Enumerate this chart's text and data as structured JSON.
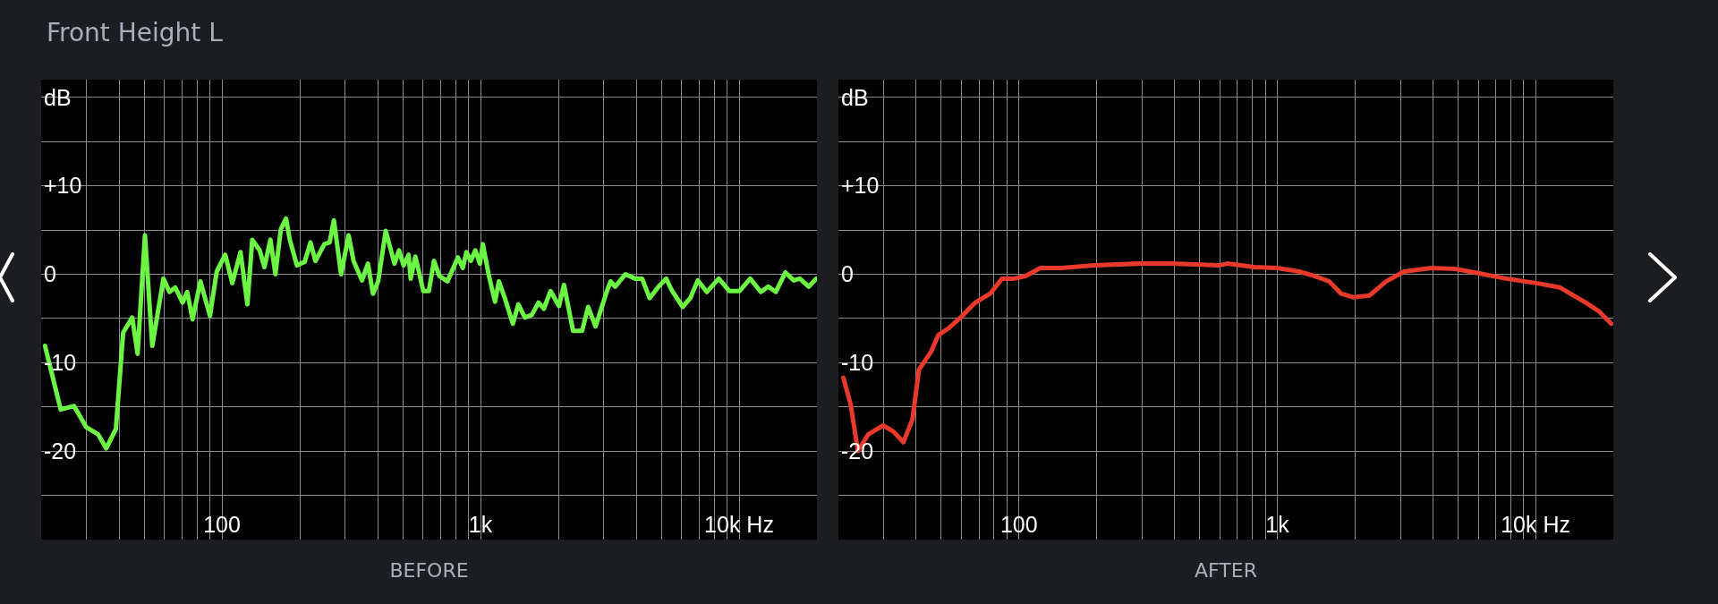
{
  "chart_data": [
    {
      "type": "line",
      "title": "Front Height L",
      "xlabel": "BEFORE",
      "log": "x",
      "grid": true,
      "xlim": [
        20,
        20000
      ],
      "ylim": [
        -30,
        22
      ],
      "xticks": [
        {
          "value": 30,
          "label": null
        },
        {
          "value": 40,
          "label": null
        },
        {
          "value": 50,
          "label": null
        },
        {
          "value": 60,
          "label": null
        },
        {
          "value": 70,
          "label": null
        },
        {
          "value": 80,
          "label": null
        },
        {
          "value": 90,
          "label": null
        },
        {
          "value": 100,
          "label": "100"
        },
        {
          "value": 200,
          "label": null
        },
        {
          "value": 300,
          "label": null
        },
        {
          "value": 400,
          "label": null
        },
        {
          "value": 500,
          "label": null
        },
        {
          "value": 600,
          "label": null
        },
        {
          "value": 700,
          "label": null
        },
        {
          "value": 800,
          "label": null
        },
        {
          "value": 900,
          "label": null
        },
        {
          "value": 1000,
          "label": "1k"
        },
        {
          "value": 2000,
          "label": null
        },
        {
          "value": 3000,
          "label": null
        },
        {
          "value": 4000,
          "label": null
        },
        {
          "value": 5000,
          "label": null
        },
        {
          "value": 6000,
          "label": null
        },
        {
          "value": 7000,
          "label": null
        },
        {
          "value": 8000,
          "label": null
        },
        {
          "value": 9000,
          "label": null
        },
        {
          "value": 10000,
          "label": "10k Hz"
        }
      ],
      "yticks": [
        {
          "value": 20,
          "label": "dB"
        },
        {
          "value": 15,
          "label": null
        },
        {
          "value": 10,
          "label": "+10"
        },
        {
          "value": 5,
          "label": null
        },
        0,
        {
          "value": -5,
          "label": null
        },
        -10,
        {
          "value": -15,
          "label": null
        },
        -20,
        {
          "value": -25,
          "label": null
        }
      ],
      "x": [
        20.7,
        23.8,
        26.8,
        29.9,
        33.2,
        35.7,
        38.9,
        41.5,
        45,
        47.2,
        50.4,
        53.8,
        59.4,
        62.7,
        66,
        70.5,
        73.4,
        77,
        82.6,
        89.9,
        95.5,
        103,
        109.7,
        118,
        125.5,
        131,
        140,
        146,
        154,
        161,
        169,
        177,
        183,
        195,
        209,
        220,
        230,
        249,
        261,
        271,
        289,
        309,
        323,
        348,
        367,
        384,
        402,
        430,
        465,
        484,
        504,
        527,
        537,
        560,
        601,
        631,
        661,
        693,
        745,
        818,
        854,
        882,
        918,
        955,
        995,
        1021,
        1078,
        1138,
        1178,
        1248,
        1334,
        1400,
        1485,
        1580,
        1676,
        1758,
        1866,
        2011,
        2103,
        2280,
        2472,
        2607,
        2786,
        3083,
        3186,
        3315,
        3636,
        3965,
        4217,
        4508,
        4886,
        5225,
        5510,
        6051,
        6471,
        6921,
        7499,
        8343,
        9162,
        10050,
        11040,
        12130,
        12970,
        13870,
        15110,
        16270,
        17170,
        18590,
        19870
      ],
      "series": [
        {
          "color": "#6cf542",
          "values": [
            -8.1,
            -15.3,
            -14.9,
            -17.3,
            -18.1,
            -19.7,
            -17.5,
            -6.6,
            -4.9,
            -9.0,
            4.4,
            -8.1,
            -0.5,
            -2.0,
            -1.5,
            -3.2,
            -2.0,
            -5.1,
            -0.8,
            -4.7,
            0.3,
            2.2,
            -1.0,
            2.5,
            -3.4,
            3.9,
            2.7,
            0.8,
            3.9,
            0,
            5.1,
            6.3,
            3.9,
            1.0,
            1.4,
            3.6,
            1.5,
            3.4,
            3.6,
            6.1,
            0,
            4.4,
            1.5,
            -0.7,
            1.2,
            -2.2,
            -0.8,
            4.9,
            1.2,
            2.7,
            1.0,
            2.2,
            -0.5,
            2.0,
            -1.9,
            -1.9,
            1.5,
            -0.2,
            -0.8,
            1.9,
            0.7,
            2.5,
            1.5,
            2.7,
            1.2,
            3.4,
            -0.2,
            -3.1,
            -0.8,
            -2.9,
            -5.6,
            -3.4,
            -4.9,
            -4.6,
            -3.2,
            -3.9,
            -1.9,
            -3.6,
            -1.2,
            -6.4,
            -6.4,
            -3.7,
            -5.9,
            -1.9,
            -0.8,
            -1.4,
            0,
            -0.5,
            -0.5,
            -2.7,
            -1.4,
            -0.5,
            -1.9,
            -3.7,
            -2.7,
            -0.7,
            -2.0,
            -0.5,
            -1.9,
            -1.9,
            -0.5,
            -2.0,
            -1.4,
            -2.0,
            0.2,
            -0.7,
            -0.5,
            -1.4,
            -0.5
          ]
        }
      ]
    },
    {
      "type": "line",
      "xlabel": "AFTER",
      "log": "x",
      "grid": true,
      "xlim": [
        20,
        20000
      ],
      "ylim": [
        -30,
        22
      ],
      "xticks": [
        {
          "value": 30,
          "label": null
        },
        {
          "value": 40,
          "label": null
        },
        {
          "value": 50,
          "label": null
        },
        {
          "value": 60,
          "label": null
        },
        {
          "value": 70,
          "label": null
        },
        {
          "value": 80,
          "label": null
        },
        {
          "value": 90,
          "label": null
        },
        {
          "value": 100,
          "label": "100"
        },
        {
          "value": 200,
          "label": null
        },
        {
          "value": 300,
          "label": null
        },
        {
          "value": 400,
          "label": null
        },
        {
          "value": 500,
          "label": null
        },
        {
          "value": 600,
          "label": null
        },
        {
          "value": 700,
          "label": null
        },
        {
          "value": 800,
          "label": null
        },
        {
          "value": 900,
          "label": null
        },
        {
          "value": 1000,
          "label": "1k"
        },
        {
          "value": 2000,
          "label": null
        },
        {
          "value": 3000,
          "label": null
        },
        {
          "value": 4000,
          "label": null
        },
        {
          "value": 5000,
          "label": null
        },
        {
          "value": 6000,
          "label": null
        },
        {
          "value": 7000,
          "label": null
        },
        {
          "value": 8000,
          "label": null
        },
        {
          "value": 9000,
          "label": null
        },
        {
          "value": 10000,
          "label": "10k Hz"
        }
      ],
      "yticks": [
        {
          "value": 20,
          "label": "dB"
        },
        {
          "value": 15,
          "label": null
        },
        {
          "value": 10,
          "label": "+10"
        },
        {
          "value": 5,
          "label": null
        },
        0,
        {
          "value": -5,
          "label": null
        },
        -10,
        {
          "value": -15,
          "label": null
        },
        -20,
        {
          "value": -25,
          "label": null
        }
      ],
      "x": [
        20.9,
        22.3,
        23.8,
        26.1,
        29.8,
        32.7,
        35.7,
        38.7,
        41,
        45.6,
        48.7,
        53.4,
        59.4,
        67.8,
        77.4,
        86,
        95.5,
        106,
        121,
        146,
        195,
        291,
        389,
        594,
        640,
        815,
        1000,
        1216,
        1390,
        1588,
        1767,
        1966,
        2278,
        2642,
        3098,
        3945,
        4886,
        6051,
        7690,
        10050,
        12440,
        15420,
        17620,
        19630
      ],
      "series": [
        {
          "color": "#e8392a",
          "values": [
            -11.7,
            -14.7,
            -20.0,
            -18.1,
            -17.1,
            -17.8,
            -19.0,
            -16.4,
            -10.8,
            -8.8,
            -6.9,
            -6.1,
            -4.9,
            -3.2,
            -2.2,
            -0.5,
            -0.5,
            -0.2,
            0.7,
            0.7,
            1.0,
            1.2,
            1.2,
            1.0,
            1.2,
            0.8,
            0.7,
            0.3,
            -0.2,
            -0.8,
            -2.2,
            -2.6,
            -2.4,
            -0.8,
            0.3,
            0.7,
            0.6,
            0.1,
            -0.5,
            -1.0,
            -1.5,
            -3.1,
            -4.2,
            -5.6
          ]
        }
      ]
    }
  ]
}
